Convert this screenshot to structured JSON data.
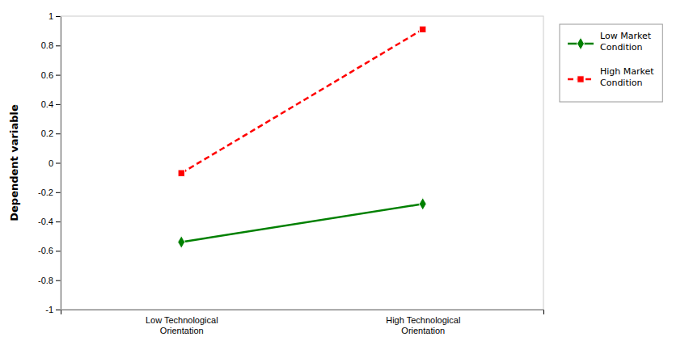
{
  "chart_data": {
    "type": "line",
    "ylabel": "Dependent variable",
    "categories": [
      "Low Technological\nOrientation",
      "High Technological\nOrientation"
    ],
    "series": [
      {
        "name": "Low Market\nCondition",
        "color": "#008000",
        "marker": "diamond",
        "line_style": "solid",
        "values": [
          -0.54,
          -0.28
        ]
      },
      {
        "name": "High Market\nCondition",
        "color": "#FF0000",
        "marker": "square",
        "line_style": "dashed",
        "values": [
          -0.07,
          0.91
        ]
      }
    ],
    "ylim": [
      -1,
      1
    ],
    "yticks": [
      -1,
      -0.8,
      -0.6,
      -0.4,
      -0.2,
      0,
      0.2,
      0.4,
      0.6,
      0.8,
      1
    ],
    "grid": false,
    "legend": "right"
  }
}
